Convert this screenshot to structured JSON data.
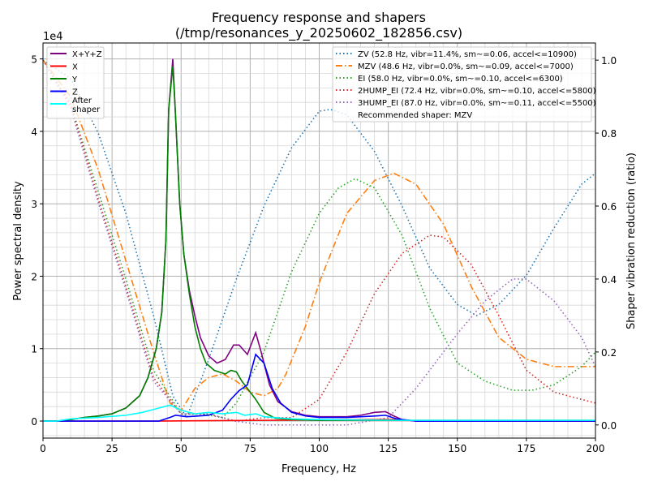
{
  "chart_data": {
    "type": "line",
    "title": "Frequency response and shapers",
    "subtitle": "(/tmp/resonances_y_20250602_182856.csv)",
    "xlabel": "Frequency, Hz",
    "ylabel": "Power spectral density",
    "y2label": "Shaper vibration reduction (ratio)",
    "y_offset_label": "1e4",
    "xlim": [
      0,
      200
    ],
    "ylim": [
      -0.235,
      5.22
    ],
    "y2lim": [
      -0.036,
      1.047
    ],
    "xticks": [
      0,
      25,
      50,
      75,
      100,
      125,
      150,
      175,
      200
    ],
    "yticks": [
      0,
      1,
      2,
      3,
      4,
      5
    ],
    "y2ticks": [
      "0.0",
      "0.2",
      "0.4",
      "0.6",
      "0.8",
      "1.0"
    ],
    "grid": true,
    "psd_legend_placement": "upper-left",
    "shaper_legend_placement": "upper-right",
    "psd_series": [
      {
        "name": "X+Y+Z",
        "color": "#800080",
        "points": [
          [
            0,
            0
          ],
          [
            5,
            0
          ],
          [
            10,
            0.02
          ],
          [
            15,
            0.05
          ],
          [
            20,
            0.07
          ],
          [
            25,
            0.1
          ],
          [
            30,
            0.18
          ],
          [
            35,
            0.35
          ],
          [
            38,
            0.6
          ],
          [
            41,
            1.0
          ],
          [
            43,
            1.5
          ],
          [
            44.5,
            2.5
          ],
          [
            45.5,
            4.3
          ],
          [
            47,
            5.0
          ],
          [
            48,
            4.2
          ],
          [
            49.5,
            3.0
          ],
          [
            51,
            2.3
          ],
          [
            53,
            1.8
          ],
          [
            55,
            1.45
          ],
          [
            57,
            1.15
          ],
          [
            60,
            0.9
          ],
          [
            63,
            0.8
          ],
          [
            66,
            0.85
          ],
          [
            69,
            1.05
          ],
          [
            71,
            1.05
          ],
          [
            74,
            0.92
          ],
          [
            77,
            1.22
          ],
          [
            79,
            0.95
          ],
          [
            82,
            0.5
          ],
          [
            85,
            0.27
          ],
          [
            90,
            0.13
          ],
          [
            95,
            0.08
          ],
          [
            100,
            0.06
          ],
          [
            110,
            0.06
          ],
          [
            115,
            0.08
          ],
          [
            120,
            0.12
          ],
          [
            124,
            0.13
          ],
          [
            127,
            0.07
          ],
          [
            130,
            0.02
          ],
          [
            135,
            0
          ],
          [
            200,
            0
          ]
        ]
      },
      {
        "name": "X",
        "color": "#ff0000",
        "points": [
          [
            0,
            0
          ],
          [
            40,
            0
          ],
          [
            60,
            0.005
          ],
          [
            80,
            0.01
          ],
          [
            100,
            0.015
          ],
          [
            120,
            0.02
          ],
          [
            128,
            0.02
          ],
          [
            135,
            0.005
          ],
          [
            200,
            0
          ]
        ]
      },
      {
        "name": "Y",
        "color": "#008000",
        "points": [
          [
            0,
            0
          ],
          [
            5,
            0
          ],
          [
            10,
            0.02
          ],
          [
            15,
            0.05
          ],
          [
            20,
            0.07
          ],
          [
            25,
            0.1
          ],
          [
            30,
            0.18
          ],
          [
            35,
            0.35
          ],
          [
            38,
            0.6
          ],
          [
            41,
            1.0
          ],
          [
            43,
            1.5
          ],
          [
            44.5,
            2.5
          ],
          [
            45.5,
            4.3
          ],
          [
            47,
            4.9
          ],
          [
            48,
            4.2
          ],
          [
            49.5,
            3.0
          ],
          [
            51,
            2.3
          ],
          [
            53,
            1.75
          ],
          [
            55,
            1.3
          ],
          [
            57,
            1.0
          ],
          [
            59,
            0.8
          ],
          [
            62,
            0.7
          ],
          [
            66,
            0.65
          ],
          [
            68,
            0.7
          ],
          [
            70,
            0.68
          ],
          [
            72,
            0.55
          ],
          [
            75,
            0.4
          ],
          [
            77,
            0.3
          ],
          [
            80,
            0.12
          ],
          [
            84,
            0.04
          ],
          [
            90,
            0.02
          ],
          [
            100,
            0.01
          ],
          [
            200,
            0.01
          ]
        ]
      },
      {
        "name": "Z",
        "color": "#0000ff",
        "points": [
          [
            0,
            0
          ],
          [
            42,
            0
          ],
          [
            46,
            0.05
          ],
          [
            48,
            0.08
          ],
          [
            52,
            0.06
          ],
          [
            60,
            0.08
          ],
          [
            65,
            0.15
          ],
          [
            68,
            0.3
          ],
          [
            71,
            0.42
          ],
          [
            74,
            0.5
          ],
          [
            77,
            0.92
          ],
          [
            80,
            0.8
          ],
          [
            83,
            0.45
          ],
          [
            86,
            0.25
          ],
          [
            90,
            0.12
          ],
          [
            95,
            0.07
          ],
          [
            100,
            0.05
          ],
          [
            110,
            0.05
          ],
          [
            120,
            0.07
          ],
          [
            124,
            0.08
          ],
          [
            128,
            0.03
          ],
          [
            135,
            0
          ],
          [
            200,
            0
          ]
        ]
      },
      {
        "name": "After\nshaper",
        "color": "#00ffff",
        "points": [
          [
            0,
            0
          ],
          [
            5,
            0
          ],
          [
            10,
            0.03
          ],
          [
            20,
            0.05
          ],
          [
            30,
            0.08
          ],
          [
            36,
            0.12
          ],
          [
            40,
            0.16
          ],
          [
            46,
            0.22
          ],
          [
            50,
            0.15
          ],
          [
            55,
            0.1
          ],
          [
            60,
            0.12
          ],
          [
            65,
            0.1
          ],
          [
            70,
            0.12
          ],
          [
            73,
            0.08
          ],
          [
            77,
            0.1
          ],
          [
            80,
            0.06
          ],
          [
            90,
            0.03
          ],
          [
            100,
            0.02
          ],
          [
            130,
            0.01
          ],
          [
            200,
            0.01
          ]
        ]
      }
    ],
    "shaper_series": [
      {
        "name": "ZV (52.8 Hz, vibr=11.4%, sm~=0.06, accel<=10900)",
        "color": "#1f77b4",
        "dash": "dotted",
        "points": [
          [
            0,
            1
          ],
          [
            10,
            0.95
          ],
          [
            20,
            0.8
          ],
          [
            30,
            0.58
          ],
          [
            40,
            0.3
          ],
          [
            47,
            0.08
          ],
          [
            52,
            0.02
          ],
          [
            60,
            0.18
          ],
          [
            70,
            0.4
          ],
          [
            80,
            0.6
          ],
          [
            90,
            0.76
          ],
          [
            100,
            0.86
          ],
          [
            104,
            0.865
          ],
          [
            110,
            0.85
          ],
          [
            120,
            0.75
          ],
          [
            130,
            0.6
          ],
          [
            140,
            0.43
          ],
          [
            150,
            0.33
          ],
          [
            157,
            0.3
          ],
          [
            165,
            0.33
          ],
          [
            175,
            0.41
          ],
          [
            185,
            0.54
          ],
          [
            195,
            0.66
          ],
          [
            200,
            0.69
          ]
        ]
      },
      {
        "name": "MZV (48.6 Hz, vibr=0.0%, sm~=0.09, accel<=7000)",
        "color": "#ff7f0e",
        "dash": "dashdot",
        "points": [
          [
            0,
            1
          ],
          [
            10,
            0.9
          ],
          [
            20,
            0.7
          ],
          [
            30,
            0.45
          ],
          [
            40,
            0.2
          ],
          [
            46,
            0.06
          ],
          [
            50,
            0.04
          ],
          [
            55,
            0.1
          ],
          [
            60,
            0.13
          ],
          [
            65,
            0.14
          ],
          [
            70,
            0.12
          ],
          [
            75,
            0.09
          ],
          [
            80,
            0.08
          ],
          [
            85,
            0.1
          ],
          [
            88,
            0.14
          ],
          [
            95,
            0.27
          ],
          [
            100,
            0.39
          ],
          [
            110,
            0.58
          ],
          [
            120,
            0.67
          ],
          [
            127,
            0.69
          ],
          [
            135,
            0.66
          ],
          [
            145,
            0.55
          ],
          [
            155,
            0.38
          ],
          [
            165,
            0.24
          ],
          [
            175,
            0.18
          ],
          [
            185,
            0.16
          ],
          [
            200,
            0.16
          ]
        ]
      },
      {
        "name": "EI (58.0 Hz, vibr=0.0%, sm~=0.10, accel<=6300)",
        "color": "#2ca02c",
        "dash": "dotted",
        "points": [
          [
            0,
            1
          ],
          [
            10,
            0.88
          ],
          [
            20,
            0.64
          ],
          [
            30,
            0.4
          ],
          [
            40,
            0.15
          ],
          [
            50,
            0.03
          ],
          [
            58,
            0.03
          ],
          [
            65,
            0.02
          ],
          [
            70,
            0.06
          ],
          [
            80,
            0.2
          ],
          [
            90,
            0.42
          ],
          [
            100,
            0.58
          ],
          [
            107,
            0.65
          ],
          [
            113,
            0.675
          ],
          [
            120,
            0.65
          ],
          [
            130,
            0.52
          ],
          [
            140,
            0.32
          ],
          [
            150,
            0.17
          ],
          [
            160,
            0.12
          ],
          [
            170,
            0.095
          ],
          [
            177,
            0.095
          ],
          [
            185,
            0.11
          ],
          [
            195,
            0.16
          ],
          [
            200,
            0.2
          ]
        ]
      },
      {
        "name": "2HUMP_EI (72.4 Hz, vibr=0.0%, sm~=0.10, accel<=5800)",
        "color": "#d62728",
        "dash": "dotted",
        "points": [
          [
            0,
            1
          ],
          [
            10,
            0.88
          ],
          [
            20,
            0.62
          ],
          [
            30,
            0.38
          ],
          [
            40,
            0.13
          ],
          [
            50,
            0.03
          ],
          [
            60,
            0.03
          ],
          [
            70,
            0.01
          ],
          [
            80,
            0.02
          ],
          [
            90,
            0.02
          ],
          [
            100,
            0.07
          ],
          [
            110,
            0.2
          ],
          [
            120,
            0.36
          ],
          [
            130,
            0.47
          ],
          [
            140,
            0.52
          ],
          [
            145,
            0.515
          ],
          [
            155,
            0.44
          ],
          [
            165,
            0.3
          ],
          [
            175,
            0.15
          ],
          [
            185,
            0.09
          ],
          [
            200,
            0.06
          ]
        ]
      },
      {
        "name": "3HUMP_EI (87.0 Hz, vibr=0.0%, sm~=0.11, accel<=5500)",
        "color": "#9467bd",
        "dash": "dotted",
        "points": [
          [
            0,
            1
          ],
          [
            10,
            0.87
          ],
          [
            20,
            0.61
          ],
          [
            30,
            0.37
          ],
          [
            40,
            0.12
          ],
          [
            50,
            0.03
          ],
          [
            60,
            0.03
          ],
          [
            70,
            0.01
          ],
          [
            80,
            0
          ],
          [
            110,
            0
          ],
          [
            125,
            0.02
          ],
          [
            135,
            0.1
          ],
          [
            150,
            0.25
          ],
          [
            160,
            0.34
          ],
          [
            170,
            0.4
          ],
          [
            175,
            0.4
          ],
          [
            185,
            0.34
          ],
          [
            195,
            0.24
          ],
          [
            200,
            0.16
          ]
        ]
      }
    ],
    "recommendation": "Recommended shaper: MZV"
  }
}
